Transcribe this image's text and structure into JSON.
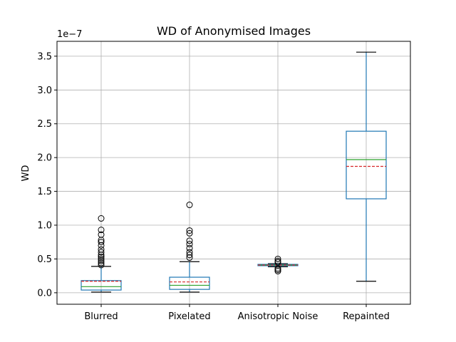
{
  "chart_data": {
    "type": "box",
    "title": "WD of Anonymised Images",
    "xlabel": "",
    "ylabel": "WD",
    "y_scale_label": "1e−7",
    "ylim": [
      -0.17,
      3.72
    ],
    "yticks": [
      0.0,
      0.5,
      1.0,
      1.5,
      2.0,
      2.5,
      3.0,
      3.5
    ],
    "ytick_labels": [
      "0.0",
      "0.5",
      "1.0",
      "1.5",
      "2.0",
      "2.5",
      "3.0",
      "3.5"
    ],
    "grid": true,
    "categories": [
      "Blurred",
      "Pixelated",
      "Anisotropic Noise",
      "Repainted"
    ],
    "boxes": [
      {
        "whisker_low": 0.01,
        "q1": 0.04,
        "median": 0.09,
        "mean": 0.17,
        "q3": 0.18,
        "whisker_high": 0.39,
        "outliers": [
          0.41,
          0.44,
          0.47,
          0.5,
          0.53,
          0.56,
          0.6,
          0.64,
          0.7,
          0.75,
          0.78,
          0.86,
          0.93,
          1.1
        ]
      },
      {
        "whisker_low": 0.01,
        "q1": 0.05,
        "median": 0.11,
        "mean": 0.16,
        "q3": 0.23,
        "whisker_high": 0.46,
        "outliers": [
          0.52,
          0.56,
          0.6,
          0.66,
          0.72,
          0.77,
          0.88,
          0.92,
          1.3
        ]
      },
      {
        "whisker_low": 0.385,
        "q1": 0.4,
        "median": 0.41,
        "mean": 0.41,
        "q3": 0.42,
        "whisker_high": 0.43,
        "outliers": [
          0.32,
          0.34,
          0.36,
          0.45,
          0.47,
          0.5
        ]
      },
      {
        "whisker_low": 0.17,
        "q1": 1.39,
        "median": 1.97,
        "mean": 1.87,
        "q3": 2.39,
        "whisker_high": 3.56,
        "outliers": []
      }
    ],
    "colors": {
      "box": "#1f77b4",
      "median": "#2ca02c",
      "mean": "#d62728",
      "grid": "#b0b0b0",
      "outlier": "#000000"
    }
  }
}
